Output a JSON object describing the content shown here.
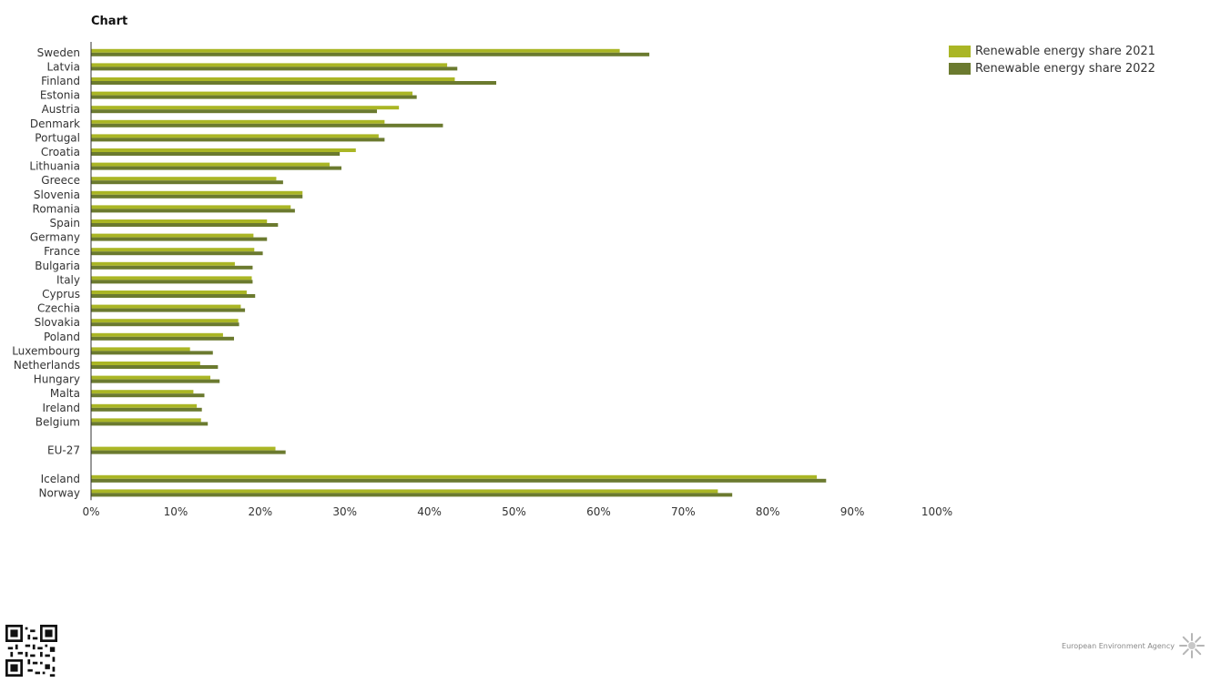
{
  "title": "Chart",
  "colors": {
    "series_2021": "#aab625",
    "series_2022": "#6b7a2f",
    "axis": "#333333",
    "tick_text": "#333333"
  },
  "legend": [
    {
      "label": "Renewable energy share 2021",
      "color": "#aab625"
    },
    {
      "label": "Renewable energy share 2022",
      "color": "#6b7a2f"
    }
  ],
  "footer": {
    "agency": "European Environment Agency"
  },
  "chart_data": {
    "type": "bar",
    "orientation": "horizontal",
    "categories": [
      "Sweden",
      "Latvia",
      "Finland",
      "Estonia",
      "Austria",
      "Denmark",
      "Portugal",
      "Croatia",
      "Lithuania",
      "Greece",
      "Slovenia",
      "Romania",
      "Spain",
      "Germany",
      "France",
      "Bulgaria",
      "Italy",
      "Cyprus",
      "Czechia",
      "Slovakia",
      "Poland",
      "Luxembourg",
      "Netherlands",
      "Hungary",
      "Malta",
      "Ireland",
      "Belgium",
      "",
      "EU-27",
      "",
      "Iceland",
      "Norway"
    ],
    "series": [
      {
        "name": "Renewable energy share 2021",
        "values": [
          62.5,
          42.1,
          43.0,
          38.0,
          36.4,
          34.7,
          34.0,
          31.3,
          28.2,
          21.9,
          25.0,
          23.6,
          20.8,
          19.2,
          19.3,
          17.0,
          19.0,
          18.4,
          17.7,
          17.4,
          15.6,
          11.7,
          12.9,
          14.1,
          12.1,
          12.5,
          13.0,
          null,
          21.8,
          null,
          85.8,
          74.1
        ]
      },
      {
        "name": "Renewable energy share 2022",
        "values": [
          66.0,
          43.3,
          47.9,
          38.5,
          33.8,
          41.6,
          34.7,
          29.4,
          29.6,
          22.7,
          25.0,
          24.1,
          22.1,
          20.8,
          20.3,
          19.1,
          19.1,
          19.4,
          18.2,
          17.5,
          16.9,
          14.4,
          15.0,
          15.2,
          13.4,
          13.1,
          13.8,
          null,
          23.0,
          null,
          86.9,
          75.8
        ]
      }
    ],
    "xlim": [
      0,
      100
    ],
    "xticks": [
      "0%",
      "10%",
      "20%",
      "30%",
      "40%",
      "50%",
      "60%",
      "70%",
      "80%",
      "90%",
      "100%"
    ],
    "grid": false,
    "legend_position": "top-right"
  }
}
